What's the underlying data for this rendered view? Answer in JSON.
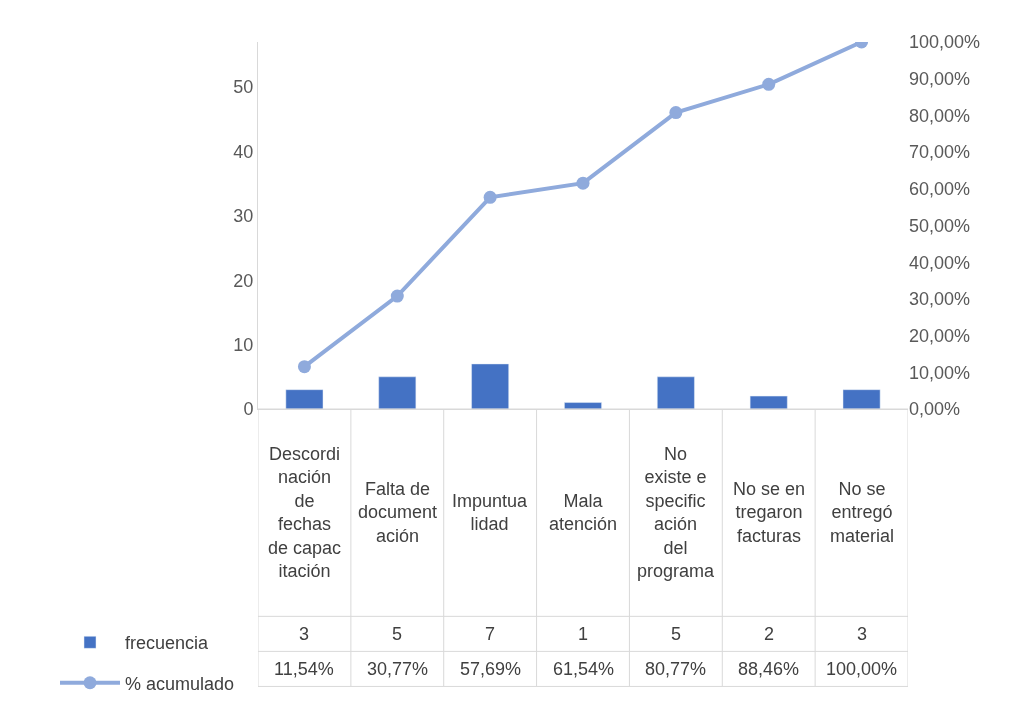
{
  "chart_data": {
    "type": "bar",
    "categories": [
      "Descordinación de fechas de capacitación",
      "Falta de documentación",
      "Impuntualidad",
      "Mala atención",
      "No existe especificación del programa",
      "No se entregaron facturas",
      "No se entregó material"
    ],
    "series": [
      {
        "name": "frecuencia",
        "color": "#4472c4",
        "values": [
          3,
          5,
          7,
          1,
          5,
          2,
          3
        ],
        "value_labels": [
          "3",
          "5",
          "7",
          "1",
          "5",
          "2",
          "3"
        ]
      },
      {
        "name": "% acumulado",
        "type": "line",
        "axis": "y2",
        "color": "#8faadc",
        "marker": "circle",
        "values": [
          11.54,
          30.77,
          57.69,
          61.54,
          80.77,
          88.46,
          100
        ],
        "value_labels": [
          "11,54%",
          "30,77%",
          "57,69%",
          "61,54%",
          "80,77%",
          "88,46%",
          "100,00%"
        ]
      }
    ],
    "ylim": [
      0,
      57
    ],
    "yticks": [
      0,
      10,
      20,
      30,
      40,
      50
    ],
    "y2lim": [
      0,
      100
    ],
    "y2ticks": [
      {
        "value": 0,
        "label": "0,00%"
      },
      {
        "value": 10,
        "label": "10,00%"
      },
      {
        "value": 20,
        "label": "20,00%"
      },
      {
        "value": 30,
        "label": "30,00%"
      },
      {
        "value": 40,
        "label": "40,00%"
      },
      {
        "value": 50,
        "label": "50,00%"
      },
      {
        "value": 60,
        "label": "60,00%"
      },
      {
        "value": 70,
        "label": "70,00%"
      },
      {
        "value": 80,
        "label": "80,00%"
      },
      {
        "value": 90,
        "label": "90,00%"
      },
      {
        "value": 100,
        "label": "100,00%"
      }
    ],
    "legend": "bottom left"
  }
}
